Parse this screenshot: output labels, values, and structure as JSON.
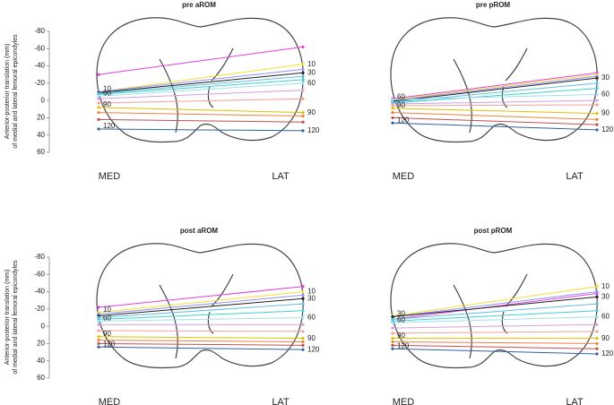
{
  "chart_data": [
    {
      "type": "line",
      "title": "pre aROM",
      "categories": [
        "MED",
        "LAT"
      ],
      "ylabel": [
        "Anterior-posterior translation (mm)",
        "of medial and lateral femoral epicondyles"
      ],
      "ylim": [
        -80,
        60
      ],
      "yticks": [
        -80,
        -60,
        -40,
        -20,
        0,
        20,
        40,
        60
      ],
      "series": [
        {
          "color": "#e040e0",
          "values": [
            -30,
            -62
          ]
        },
        {
          "color": "#f0e030",
          "values": [
            -10,
            -42
          ],
          "med_label": "10",
          "lat_label": "10"
        },
        {
          "color": "#9090ff",
          "values": [
            -10,
            -36
          ]
        },
        {
          "color": "#202020",
          "values": [
            -9,
            -32
          ],
          "lat_label": "30"
        },
        {
          "color": "#60c0e0",
          "values": [
            -8,
            -28
          ]
        },
        {
          "color": "#40d0d0",
          "values": [
            -7,
            -24
          ]
        },
        {
          "color": "#a0e0f0",
          "values": [
            -5,
            -20
          ],
          "med_label": "60",
          "lat_label": "60"
        },
        {
          "color": "#d0a0e0",
          "values": [
            -2,
            -12
          ]
        },
        {
          "color": "#f0a0a0",
          "values": [
            3,
            -2
          ]
        },
        {
          "color": "#e0c000",
          "values": [
            8,
            14
          ],
          "med_label": "90",
          "lat_label": "90"
        },
        {
          "color": "#f08040",
          "values": [
            14,
            18
          ]
        },
        {
          "color": "#c05050",
          "values": [
            22,
            25
          ]
        },
        {
          "color": "#3060a0",
          "values": [
            33,
            35
          ],
          "med_label": "120",
          "lat_label": "120"
        }
      ]
    },
    {
      "type": "line",
      "title": "pre pROM",
      "categories": [
        "MED",
        "LAT"
      ],
      "ylim": [
        -80,
        60
      ],
      "series": [
        {
          "color": "#e040e0",
          "values": [
            -2,
            -32
          ]
        },
        {
          "color": "#f0e030",
          "values": [
            -1,
            -30
          ]
        },
        {
          "color": "#9090ff",
          "values": [
            0,
            -28
          ]
        },
        {
          "color": "#202020",
          "values": [
            1,
            -26
          ],
          "lat_label": "30"
        },
        {
          "color": "#60c0e0",
          "values": [
            2,
            -20
          ]
        },
        {
          "color": "#40d0d0",
          "values": [
            3,
            -14
          ]
        },
        {
          "color": "#a0e0f0",
          "values": [
            -1,
            -7
          ],
          "med_label": "60",
          "lat_label": "60"
        },
        {
          "color": "#d0a0e0",
          "values": [
            4,
            0
          ]
        },
        {
          "color": "#f0a0a0",
          "values": [
            6,
            5
          ]
        },
        {
          "color": "#e0c000",
          "values": [
            9,
            15
          ],
          "med_label": "90",
          "lat_label": "90"
        },
        {
          "color": "#f08040",
          "values": [
            14,
            22
          ]
        },
        {
          "color": "#c05050",
          "values": [
            20,
            28
          ]
        },
        {
          "color": "#3060a0",
          "values": [
            26,
            34
          ],
          "med_label": "120",
          "lat_label": "120"
        }
      ]
    },
    {
      "type": "line",
      "title": "post aROM",
      "categories": [
        "MED",
        "LAT"
      ],
      "ylabel": [
        "Anterior-posterior translation (mm)",
        "of medial and lateral femoral epicondyles"
      ],
      "ylim": [
        -80,
        60
      ],
      "yticks": [
        -80,
        -60,
        -40,
        -20,
        0,
        20,
        40,
        60
      ],
      "series": [
        {
          "color": "#e040e0",
          "values": [
            -22,
            -46
          ]
        },
        {
          "color": "#f0e030",
          "values": [
            -16,
            -40
          ],
          "med_label": "10",
          "lat_label": "10"
        },
        {
          "color": "#9090ff",
          "values": [
            -14,
            -36
          ]
        },
        {
          "color": "#202020",
          "values": [
            -12,
            -32
          ],
          "lat_label": "30"
        },
        {
          "color": "#60c0e0",
          "values": [
            -10,
            -26
          ]
        },
        {
          "color": "#40d0d0",
          "values": [
            -8,
            -18
          ]
        },
        {
          "color": "#a0e0f0",
          "values": [
            -6,
            -10
          ],
          "med_label": "60",
          "lat_label": "60"
        },
        {
          "color": "#d0a0e0",
          "values": [
            -2,
            -2
          ]
        },
        {
          "color": "#f0a0a0",
          "values": [
            5,
            6
          ]
        },
        {
          "color": "#e0c000",
          "values": [
            12,
            14
          ],
          "med_label": "90",
          "lat_label": "90"
        },
        {
          "color": "#f08040",
          "values": [
            16,
            18
          ]
        },
        {
          "color": "#c05050",
          "values": [
            20,
            22
          ]
        },
        {
          "color": "#3060a0",
          "values": [
            24,
            27
          ],
          "med_label": "120",
          "lat_label": "120"
        }
      ]
    },
    {
      "type": "line",
      "title": "post pROM",
      "categories": [
        "MED",
        "LAT"
      ],
      "ylim": [
        -80,
        60
      ],
      "series": [
        {
          "color": "#e040e0",
          "values": [
            -8,
            -38
          ]
        },
        {
          "color": "#f0e030",
          "values": [
            -12,
            -46
          ],
          "lat_label": "10"
        },
        {
          "color": "#9090ff",
          "values": [
            -11,
            -40
          ]
        },
        {
          "color": "#202020",
          "values": [
            -11,
            -34
          ],
          "med_label": "30",
          "lat_label": "30"
        },
        {
          "color": "#60c0e0",
          "values": [
            -8,
            -26
          ]
        },
        {
          "color": "#40d0d0",
          "values": [
            -6,
            -18
          ]
        },
        {
          "color": "#a0e0f0",
          "values": [
            -4,
            -11
          ],
          "med_label": "60",
          "lat_label": "60"
        },
        {
          "color": "#d0a0e0",
          "values": [
            2,
            -2
          ]
        },
        {
          "color": "#f0a0a0",
          "values": [
            8,
            6
          ]
        },
        {
          "color": "#e0c000",
          "values": [
            14,
            14
          ],
          "med_label": "90",
          "lat_label": "90"
        },
        {
          "color": "#f08040",
          "values": [
            18,
            20
          ]
        },
        {
          "color": "#c05050",
          "values": [
            22,
            26
          ]
        },
        {
          "color": "#3060a0",
          "values": [
            26,
            32
          ],
          "med_label": "120",
          "lat_label": "120"
        }
      ]
    }
  ]
}
